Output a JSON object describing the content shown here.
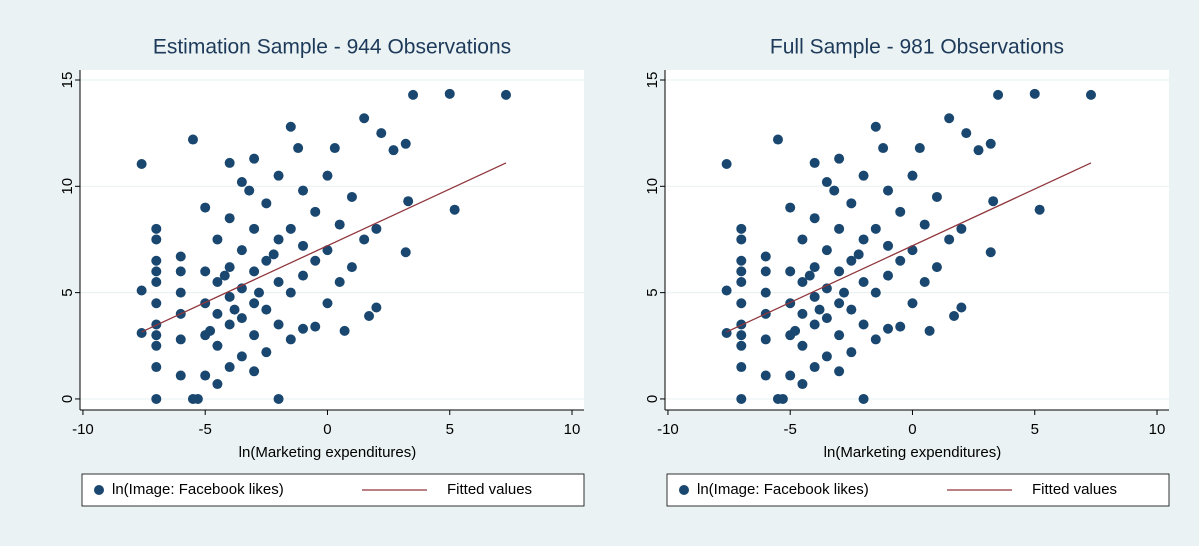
{
  "chart_data": [
    {
      "type": "scatter",
      "title": "Estimation Sample - 944 Observations",
      "xlabel": "ln(Marketing expenditures)",
      "xlim": [
        -10.12,
        10.49
      ],
      "xticks": [
        -10,
        -5,
        0,
        5,
        10
      ],
      "ylim": [
        -0.52,
        15.47
      ],
      "yticks": [
        0,
        5,
        10,
        15
      ],
      "grid": true,
      "series": [
        {
          "name": "ln(Image: Facebook likes)",
          "color": "#1a476f",
          "x": [
            -7.6,
            -7.6,
            -7.6,
            -7,
            -7,
            -7,
            -7,
            -7,
            -7,
            -7,
            -7,
            -7,
            -7,
            -7,
            -6,
            -6,
            -6,
            -6,
            -6,
            -6,
            -5.5,
            -5.3,
            -5.5,
            -5,
            -5,
            -5,
            -5,
            -5,
            -4.5,
            -4.5,
            -4.5,
            -4.5,
            -4.5,
            -4,
            -4,
            -4,
            -4,
            -4,
            -4,
            -3.5,
            -3.5,
            -3.5,
            -3.5,
            -3.5,
            -3,
            -3,
            -3,
            -3,
            -3,
            -3,
            -2.5,
            -2.5,
            -2.5,
            -2.5,
            -2,
            -2,
            -2,
            -2,
            -2,
            -1.5,
            -1.5,
            -1.5,
            -1.5,
            -1,
            -1,
            -1,
            -1,
            -0.5,
            -0.5,
            -0.5,
            0,
            0,
            0,
            0.5,
            0.5,
            1,
            1,
            1.5,
            1.5,
            2,
            2,
            2.2,
            2.7,
            3.2,
            3.3,
            3.2,
            1.7,
            0.7,
            3.5,
            5,
            7.3,
            5.2,
            -3.2,
            -4.8,
            -2.8,
            -3.8,
            -4.2,
            -1.2,
            0.3,
            -2.2
          ],
          "values": [
            11.05,
            5.1,
            3.1,
            0,
            1.5,
            2.5,
            3.5,
            4.5,
            5.5,
            6.5,
            7.5,
            8,
            3,
            6,
            1.1,
            2.8,
            4,
            5,
            6,
            6.7,
            12.2,
            0,
            0,
            1.1,
            3,
            4.5,
            6,
            9,
            0.7,
            2.5,
            4,
            5.5,
            7.5,
            1.5,
            3.5,
            4.8,
            6.2,
            8.5,
            11.1,
            2,
            3.8,
            5.2,
            7,
            10.2,
            1.3,
            3,
            4.5,
            6,
            8,
            11.3,
            2.2,
            4.2,
            6.5,
            9.2,
            0,
            3.5,
            5.5,
            7.5,
            10.5,
            2.8,
            5,
            8,
            12.8,
            3.3,
            5.8,
            7.2,
            9.8,
            3.4,
            6.5,
            8.8,
            4.5,
            7,
            10.5,
            5.5,
            8.2,
            6.2,
            9.5,
            7.5,
            13.2,
            4.3,
            8,
            12.5,
            11.7,
            12,
            9.3,
            6.9,
            3.9,
            3.2,
            14.3,
            14.35,
            14.3,
            8.9,
            9.8,
            3.2,
            5,
            4.2,
            5.8,
            11.8,
            11.8,
            6.8
          ]
        },
        {
          "name": "Fitted values",
          "color": "#90353b",
          "type": "line",
          "x": [
            -7.6,
            7.3
          ],
          "values": [
            3.15,
            11.1
          ]
        }
      ]
    },
    {
      "type": "scatter",
      "title": "Full Sample - 981 Observations",
      "xlabel": "ln(Marketing expenditures)",
      "xlim": [
        -10.12,
        10.49
      ],
      "xticks": [
        -10,
        -5,
        0,
        5,
        10
      ],
      "ylim": [
        -0.52,
        15.47
      ],
      "yticks": [
        0,
        5,
        10,
        15
      ],
      "grid": true,
      "series": [
        {
          "name": "ln(Image: Facebook likes)",
          "color": "#1a476f",
          "x": [
            -7.6,
            -7.6,
            -7.6,
            -7,
            -7,
            -7,
            -7,
            -7,
            -7,
            -7,
            -7,
            -7,
            -7,
            -7,
            -6,
            -6,
            -6,
            -6,
            -6,
            -6,
            -5.5,
            -5.3,
            -5.5,
            -5,
            -5,
            -5,
            -5,
            -5,
            -4.5,
            -4.5,
            -4.5,
            -4.5,
            -4.5,
            -4,
            -4,
            -4,
            -4,
            -4,
            -4,
            -3.5,
            -3.5,
            -3.5,
            -3.5,
            -3.5,
            -3,
            -3,
            -3,
            -3,
            -3,
            -3,
            -2.5,
            -2.5,
            -2.5,
            -2.5,
            -2,
            -2,
            -2,
            -2,
            -2,
            -1.5,
            -1.5,
            -1.5,
            -1.5,
            -1,
            -1,
            -1,
            -1,
            -0.5,
            -0.5,
            -0.5,
            0,
            0,
            0,
            0.5,
            0.5,
            1,
            1,
            1.5,
            1.5,
            2,
            2,
            2.2,
            2.7,
            3.2,
            3.3,
            3.2,
            1.7,
            0.7,
            3.5,
            5,
            7.3,
            5.2,
            -3.2,
            -4.8,
            -2.8,
            -3.8,
            -4.2,
            -1.2,
            0.3,
            -2.2
          ],
          "values": [
            11.05,
            5.1,
            3.1,
            0,
            1.5,
            2.5,
            3.5,
            4.5,
            5.5,
            6.5,
            7.5,
            8,
            3,
            6,
            1.1,
            2.8,
            4,
            5,
            6,
            6.7,
            12.2,
            0,
            0,
            1.1,
            3,
            4.5,
            6,
            9,
            0.7,
            2.5,
            4,
            5.5,
            7.5,
            1.5,
            3.5,
            4.8,
            6.2,
            8.5,
            11.1,
            2,
            3.8,
            5.2,
            7,
            10.2,
            1.3,
            3,
            4.5,
            6,
            8,
            11.3,
            2.2,
            4.2,
            6.5,
            9.2,
            0,
            3.5,
            5.5,
            7.5,
            10.5,
            2.8,
            5,
            8,
            12.8,
            3.3,
            5.8,
            7.2,
            9.8,
            3.4,
            6.5,
            8.8,
            4.5,
            7,
            10.5,
            5.5,
            8.2,
            6.2,
            9.5,
            7.5,
            13.2,
            4.3,
            8,
            12.5,
            11.7,
            12,
            9.3,
            6.9,
            3.9,
            3.2,
            14.3,
            14.35,
            14.3,
            8.9,
            9.8,
            3.2,
            5,
            4.2,
            5.8,
            11.8,
            11.8,
            6.8
          ]
        },
        {
          "name": "Fitted values",
          "color": "#90353b",
          "type": "line",
          "x": [
            -7.6,
            7.3
          ],
          "values": [
            3.15,
            11.1
          ]
        }
      ]
    }
  ]
}
